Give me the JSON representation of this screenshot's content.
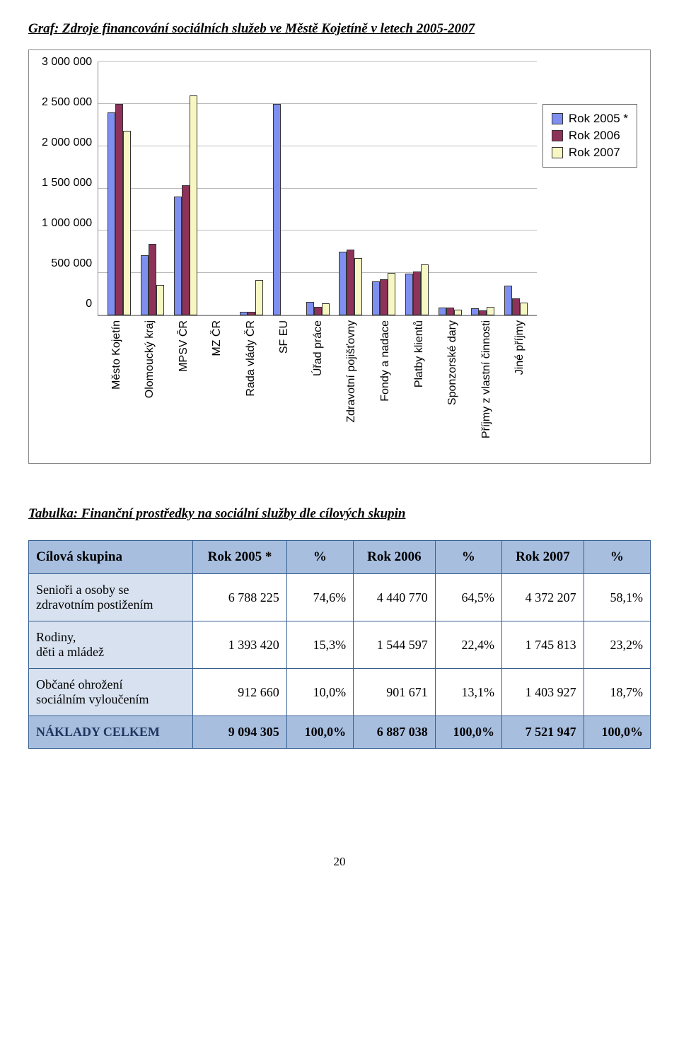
{
  "heading_prefix": "Graf:",
  "heading_rest": " Zdroje financování sociálních služeb ve Městě Kojetíně v letech 2005-2007",
  "chart": {
    "type": "bar",
    "categories": [
      "Město Kojetín",
      "Olomoucký kraj",
      "MPSV ČR",
      "MZ ČR",
      "Rada vlády ČR",
      "SF EU",
      "Úřad práce",
      "Zdravotní pojišťovny",
      "Fondy a nadace",
      "Platby klientů",
      "Sponzorské dary",
      "Příjmy z vlastní činnosti",
      "Jiné příjmy"
    ],
    "series": [
      {
        "name": "Rok 2005 *",
        "color": "#7e8ff0",
        "values": [
          2400000,
          710000,
          1400000,
          0,
          40000,
          2500000,
          160000,
          750000,
          400000,
          490000,
          90000,
          80000,
          350000
        ]
      },
      {
        "name": "Rok 2006",
        "color": "#8f325a",
        "values": [
          2500000,
          840000,
          1540000,
          0,
          40000,
          0,
          100000,
          780000,
          430000,
          520000,
          90000,
          60000,
          200000
        ]
      },
      {
        "name": "Rok 2007",
        "color": "#f7f7c4",
        "values": [
          2180000,
          360000,
          2600000,
          0,
          420000,
          0,
          140000,
          680000,
          500000,
          600000,
          70000,
          100000,
          150000
        ]
      }
    ],
    "y_ticks": [
      "3 000 000",
      "2 500 000",
      "2 000 000",
      "1 500 000",
      "1 000 000",
      "500 000",
      "0"
    ],
    "y_max": 3000000,
    "grid_color": "#bbbbbb",
    "border_color": "#888888",
    "background": "#ffffff",
    "font": "Arial"
  },
  "table_heading_prefix": "Tabulka:",
  "table_heading_rest": " Finanční prostředky na sociální služby dle cílových skupin",
  "table": {
    "columns": [
      "Cílová skupina",
      "Rok 2005 *",
      "%",
      "Rok 2006",
      "%",
      "Rok 2007",
      "%"
    ],
    "rows": [
      {
        "label_l1": "Senioři a osoby se",
        "label_l2": "zdravotním postižením",
        "v": [
          "6 788 225",
          "74,6%",
          "4 440 770",
          "64,5%",
          "4 372 207",
          "58,1%"
        ]
      },
      {
        "label_l1": "Rodiny,",
        "label_l2": "děti a mládež",
        "v": [
          "1 393 420",
          "15,3%",
          "1 544 597",
          "22,4%",
          "1 745 813",
          "23,2%"
        ]
      },
      {
        "label_l1": "Občané ohrožení",
        "label_l2": "sociálním vyloučením",
        "v": [
          "912 660",
          "10,0%",
          "901 671",
          "13,1%",
          "1 403 927",
          "18,7%"
        ]
      }
    ],
    "footer": {
      "label": "NÁKLADY CELKEM",
      "v": [
        "9 094 305",
        "100,0%",
        "6 887 038",
        "100,0%",
        "7 521 947",
        "100,0%"
      ]
    },
    "border_color": "#365f91",
    "header_bg": "#a7bedf",
    "row_label_bg": "#d7e1ef"
  },
  "page_number": "20"
}
